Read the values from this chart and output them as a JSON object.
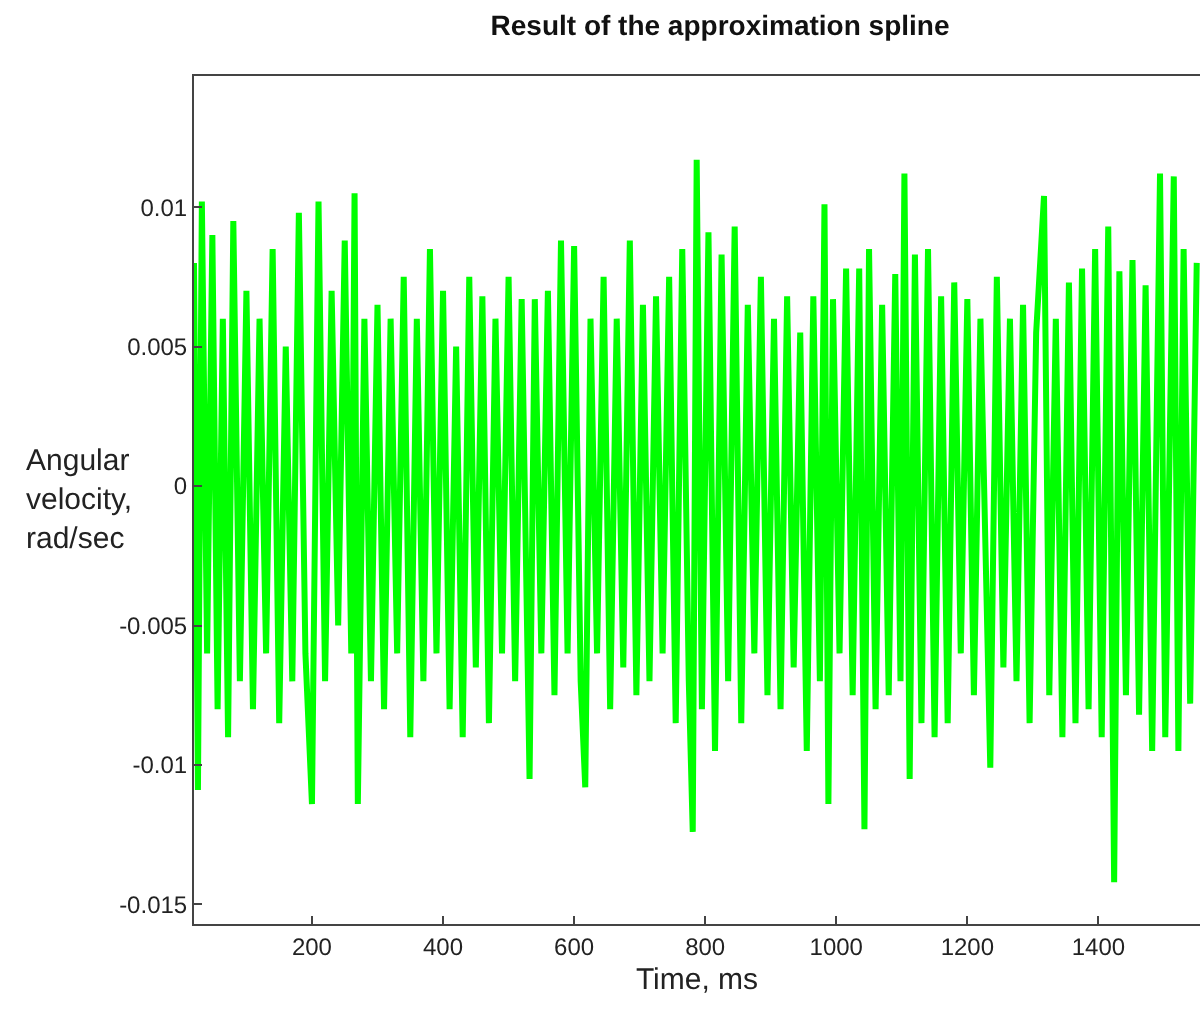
{
  "chart_data": {
    "type": "line",
    "title": "Result of the approximation spline",
    "xlabel": "Time, ms",
    "ylabel": "Angular velocity, rad/sec",
    "xlim": [
      20,
      1555
    ],
    "ylim": [
      -0.0157,
      0.0147
    ],
    "xticks": [
      200,
      400,
      600,
      800,
      1000,
      1200,
      1400
    ],
    "yticks": [
      -0.015,
      -0.01,
      -0.005,
      0,
      0.005,
      0.01
    ],
    "marker": "none",
    "line_style": "solid",
    "series": [
      {
        "color": "#00ff00",
        "x": [
          20,
          26,
          32,
          40,
          48,
          56,
          64,
          72,
          80,
          90,
          100,
          110,
          120,
          130,
          140,
          150,
          160,
          170,
          180,
          190,
          200,
          210,
          220,
          230,
          240,
          250,
          260,
          265,
          270,
          280,
          290,
          300,
          310,
          320,
          330,
          340,
          350,
          360,
          370,
          380,
          390,
          400,
          410,
          420,
          430,
          440,
          450,
          460,
          470,
          480,
          490,
          500,
          510,
          520,
          532,
          540,
          550,
          560,
          570,
          580,
          590,
          600,
          610,
          617,
          625,
          635,
          645,
          655,
          665,
          675,
          685,
          695,
          705,
          715,
          725,
          735,
          745,
          755,
          765,
          775,
          781,
          787,
          795,
          805,
          815,
          825,
          835,
          845,
          855,
          865,
          875,
          885,
          895,
          905,
          915,
          925,
          935,
          945,
          955,
          965,
          975,
          982,
          988,
          995,
          1005,
          1015,
          1025,
          1035,
          1043,
          1050,
          1060,
          1070,
          1080,
          1090,
          1098,
          1104,
          1112,
          1120,
          1130,
          1140,
          1150,
          1160,
          1170,
          1180,
          1190,
          1200,
          1210,
          1220,
          1235,
          1245,
          1255,
          1265,
          1275,
          1285,
          1295,
          1305,
          1317,
          1325,
          1335,
          1345,
          1355,
          1365,
          1375,
          1385,
          1395,
          1405,
          1415,
          1424,
          1432,
          1442,
          1452,
          1462,
          1472,
          1482,
          1494,
          1502,
          1515,
          1522,
          1530,
          1540,
          1550
        ],
        "values": [
          0.008,
          -0.0109,
          0.0102,
          -0.006,
          0.009,
          -0.008,
          0.006,
          -0.009,
          0.0095,
          -0.007,
          0.007,
          -0.008,
          0.006,
          -0.006,
          0.0085,
          -0.0085,
          0.005,
          -0.007,
          0.0098,
          -0.006,
          -0.0114,
          0.0102,
          -0.007,
          0.007,
          -0.005,
          0.0088,
          -0.006,
          0.0105,
          -0.0114,
          0.006,
          -0.007,
          0.0065,
          -0.008,
          0.006,
          -0.006,
          0.0075,
          -0.009,
          0.006,
          -0.007,
          0.0085,
          -0.006,
          0.007,
          -0.008,
          0.005,
          -0.009,
          0.0075,
          -0.0065,
          0.0068,
          -0.0085,
          0.006,
          -0.006,
          0.0075,
          -0.007,
          0.0067,
          -0.0105,
          0.0067,
          -0.006,
          0.007,
          -0.0075,
          0.0088,
          -0.006,
          0.0086,
          -0.007,
          -0.0108,
          0.006,
          -0.006,
          0.0075,
          -0.008,
          0.006,
          -0.0065,
          0.0088,
          -0.0075,
          0.0065,
          -0.007,
          0.0068,
          -0.006,
          0.0075,
          -0.0085,
          0.0085,
          -0.007,
          -0.0124,
          0.0117,
          -0.008,
          0.0091,
          -0.0095,
          0.0083,
          -0.007,
          0.0093,
          -0.0085,
          0.0065,
          -0.006,
          0.0075,
          -0.0075,
          0.006,
          -0.008,
          0.0068,
          -0.0065,
          0.0055,
          -0.0095,
          0.0068,
          -0.007,
          0.0101,
          -0.0114,
          0.0067,
          -0.006,
          0.0078,
          -0.0075,
          0.0078,
          -0.0123,
          0.0085,
          -0.008,
          0.0065,
          -0.0075,
          0.0076,
          -0.007,
          0.0112,
          -0.0105,
          0.0083,
          -0.0085,
          0.0085,
          -0.009,
          0.0068,
          -0.0085,
          0.0073,
          -0.006,
          0.0067,
          -0.0075,
          0.006,
          -0.0101,
          0.0075,
          -0.0065,
          0.006,
          -0.007,
          0.0065,
          -0.0085,
          0.0055,
          0.0104,
          -0.0075,
          0.006,
          -0.009,
          0.0073,
          -0.0085,
          0.0078,
          -0.008,
          0.0085,
          -0.009,
          0.0093,
          -0.0142,
          0.0077,
          -0.0075,
          0.0081,
          -0.0082,
          0.0072,
          -0.0095,
          0.0112,
          -0.009,
          0.0111,
          -0.0095,
          0.0085,
          -0.0078,
          0.008
        ]
      }
    ]
  }
}
